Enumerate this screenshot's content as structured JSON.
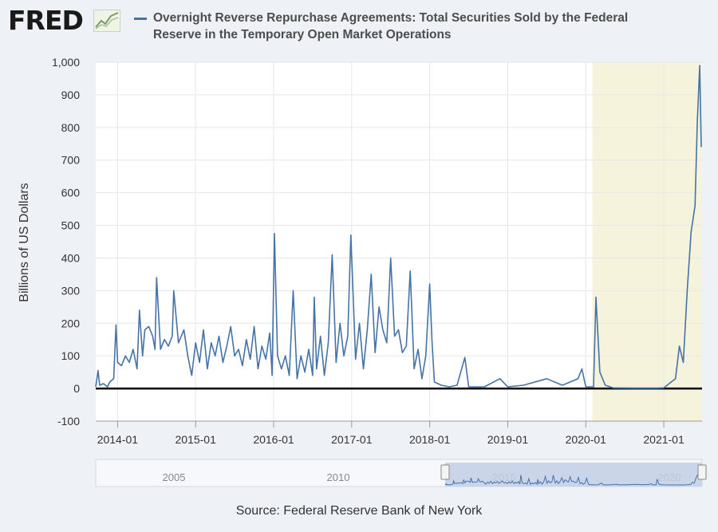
{
  "brand": {
    "logo_text": "FRED"
  },
  "header": {
    "title": "Overnight Reverse Repurchase Agreements: Total Securities Sold by the Federal Reserve in the Temporary Open Market Operations"
  },
  "footer": {
    "source": "Source: Federal Reserve Bank of New York"
  },
  "colors": {
    "series": "#4572a7",
    "recession": "#f6f3dc",
    "zero_line": "#000000",
    "navigator": "#c3cfe6"
  },
  "chart_data": {
    "type": "line",
    "title": "Overnight Reverse Repurchase Agreements: Total Securities Sold by the Federal Reserve in the Temporary Open Market Operations",
    "xlabel": "",
    "ylabel": "Billions of US Dollars",
    "ylim": [
      -100,
      1000
    ],
    "yticks": [
      "1,000",
      "900",
      "800",
      "700",
      "600",
      "500",
      "400",
      "300",
      "200",
      "100",
      "0",
      "-100"
    ],
    "xlim": [
      2013.72,
      2021.49
    ],
    "xticks": [
      "2014-01",
      "2015-01",
      "2016-01",
      "2017-01",
      "2018-01",
      "2019-01",
      "2020-01",
      "2021-01"
    ],
    "grid": true,
    "shaded_regions": [
      {
        "start": "2020-02",
        "end": "2021-07"
      }
    ],
    "navigator_ticks": [
      "2005",
      "2010",
      "2015",
      "2020"
    ],
    "series": [
      {
        "name": "Overnight Reverse Repurchase Agreements",
        "points": [
          [
            2013.72,
            5
          ],
          [
            2013.75,
            55
          ],
          [
            2013.77,
            10
          ],
          [
            2013.82,
            15
          ],
          [
            2013.87,
            5
          ],
          [
            2013.9,
            20
          ],
          [
            2013.95,
            30
          ],
          [
            2013.98,
            195
          ],
          [
            2014.0,
            80
          ],
          [
            2014.05,
            70
          ],
          [
            2014.1,
            100
          ],
          [
            2014.15,
            80
          ],
          [
            2014.2,
            120
          ],
          [
            2014.25,
            60
          ],
          [
            2014.28,
            240
          ],
          [
            2014.32,
            100
          ],
          [
            2014.35,
            180
          ],
          [
            2014.4,
            190
          ],
          [
            2014.45,
            160
          ],
          [
            2014.48,
            120
          ],
          [
            2014.5,
            340
          ],
          [
            2014.55,
            120
          ],
          [
            2014.6,
            150
          ],
          [
            2014.65,
            130
          ],
          [
            2014.7,
            160
          ],
          [
            2014.72,
            300
          ],
          [
            2014.78,
            140
          ],
          [
            2014.85,
            180
          ],
          [
            2014.9,
            100
          ],
          [
            2014.95,
            40
          ],
          [
            2015.0,
            140
          ],
          [
            2015.05,
            80
          ],
          [
            2015.1,
            180
          ],
          [
            2015.15,
            60
          ],
          [
            2015.2,
            140
          ],
          [
            2015.25,
            100
          ],
          [
            2015.3,
            160
          ],
          [
            2015.35,
            80
          ],
          [
            2015.4,
            130
          ],
          [
            2015.45,
            190
          ],
          [
            2015.5,
            100
          ],
          [
            2015.55,
            120
          ],
          [
            2015.6,
            70
          ],
          [
            2015.65,
            150
          ],
          [
            2015.7,
            90
          ],
          [
            2015.75,
            190
          ],
          [
            2015.8,
            60
          ],
          [
            2015.85,
            130
          ],
          [
            2015.9,
            90
          ],
          [
            2015.95,
            170
          ],
          [
            2015.98,
            40
          ],
          [
            2016.01,
            475
          ],
          [
            2016.05,
            100
          ],
          [
            2016.1,
            60
          ],
          [
            2016.15,
            100
          ],
          [
            2016.2,
            40
          ],
          [
            2016.25,
            300
          ],
          [
            2016.3,
            30
          ],
          [
            2016.35,
            100
          ],
          [
            2016.4,
            50
          ],
          [
            2016.45,
            120
          ],
          [
            2016.5,
            40
          ],
          [
            2016.52,
            280
          ],
          [
            2016.55,
            60
          ],
          [
            2016.6,
            160
          ],
          [
            2016.65,
            40
          ],
          [
            2016.7,
            140
          ],
          [
            2016.75,
            410
          ],
          [
            2016.8,
            80
          ],
          [
            2016.85,
            200
          ],
          [
            2016.9,
            100
          ],
          [
            2016.95,
            160
          ],
          [
            2016.99,
            470
          ],
          [
            2017.05,
            90
          ],
          [
            2017.1,
            200
          ],
          [
            2017.15,
            60
          ],
          [
            2017.2,
            180
          ],
          [
            2017.25,
            350
          ],
          [
            2017.3,
            110
          ],
          [
            2017.35,
            250
          ],
          [
            2017.4,
            180
          ],
          [
            2017.45,
            140
          ],
          [
            2017.5,
            400
          ],
          [
            2017.55,
            160
          ],
          [
            2017.6,
            180
          ],
          [
            2017.65,
            110
          ],
          [
            2017.7,
            130
          ],
          [
            2017.75,
            360
          ],
          [
            2017.8,
            60
          ],
          [
            2017.85,
            120
          ],
          [
            2017.9,
            30
          ],
          [
            2017.95,
            100
          ],
          [
            2018.0,
            320
          ],
          [
            2018.03,
            140
          ],
          [
            2018.06,
            20
          ],
          [
            2018.15,
            10
          ],
          [
            2018.25,
            5
          ],
          [
            2018.35,
            10
          ],
          [
            2018.45,
            95
          ],
          [
            2018.5,
            5
          ],
          [
            2018.7,
            5
          ],
          [
            2018.9,
            30
          ],
          [
            2019.0,
            5
          ],
          [
            2019.2,
            10
          ],
          [
            2019.5,
            30
          ],
          [
            2019.7,
            10
          ],
          [
            2019.9,
            30
          ],
          [
            2019.95,
            60
          ],
          [
            2020.0,
            5
          ],
          [
            2020.1,
            5
          ],
          [
            2020.13,
            280
          ],
          [
            2020.18,
            50
          ],
          [
            2020.25,
            10
          ],
          [
            2020.35,
            2
          ],
          [
            2020.6,
            1
          ],
          [
            2020.9,
            1
          ],
          [
            2021.0,
            2
          ],
          [
            2021.15,
            30
          ],
          [
            2021.2,
            130
          ],
          [
            2021.25,
            80
          ],
          [
            2021.3,
            300
          ],
          [
            2021.35,
            480
          ],
          [
            2021.4,
            560
          ],
          [
            2021.43,
            820
          ],
          [
            2021.46,
            990
          ],
          [
            2021.48,
            740
          ]
        ]
      }
    ]
  }
}
